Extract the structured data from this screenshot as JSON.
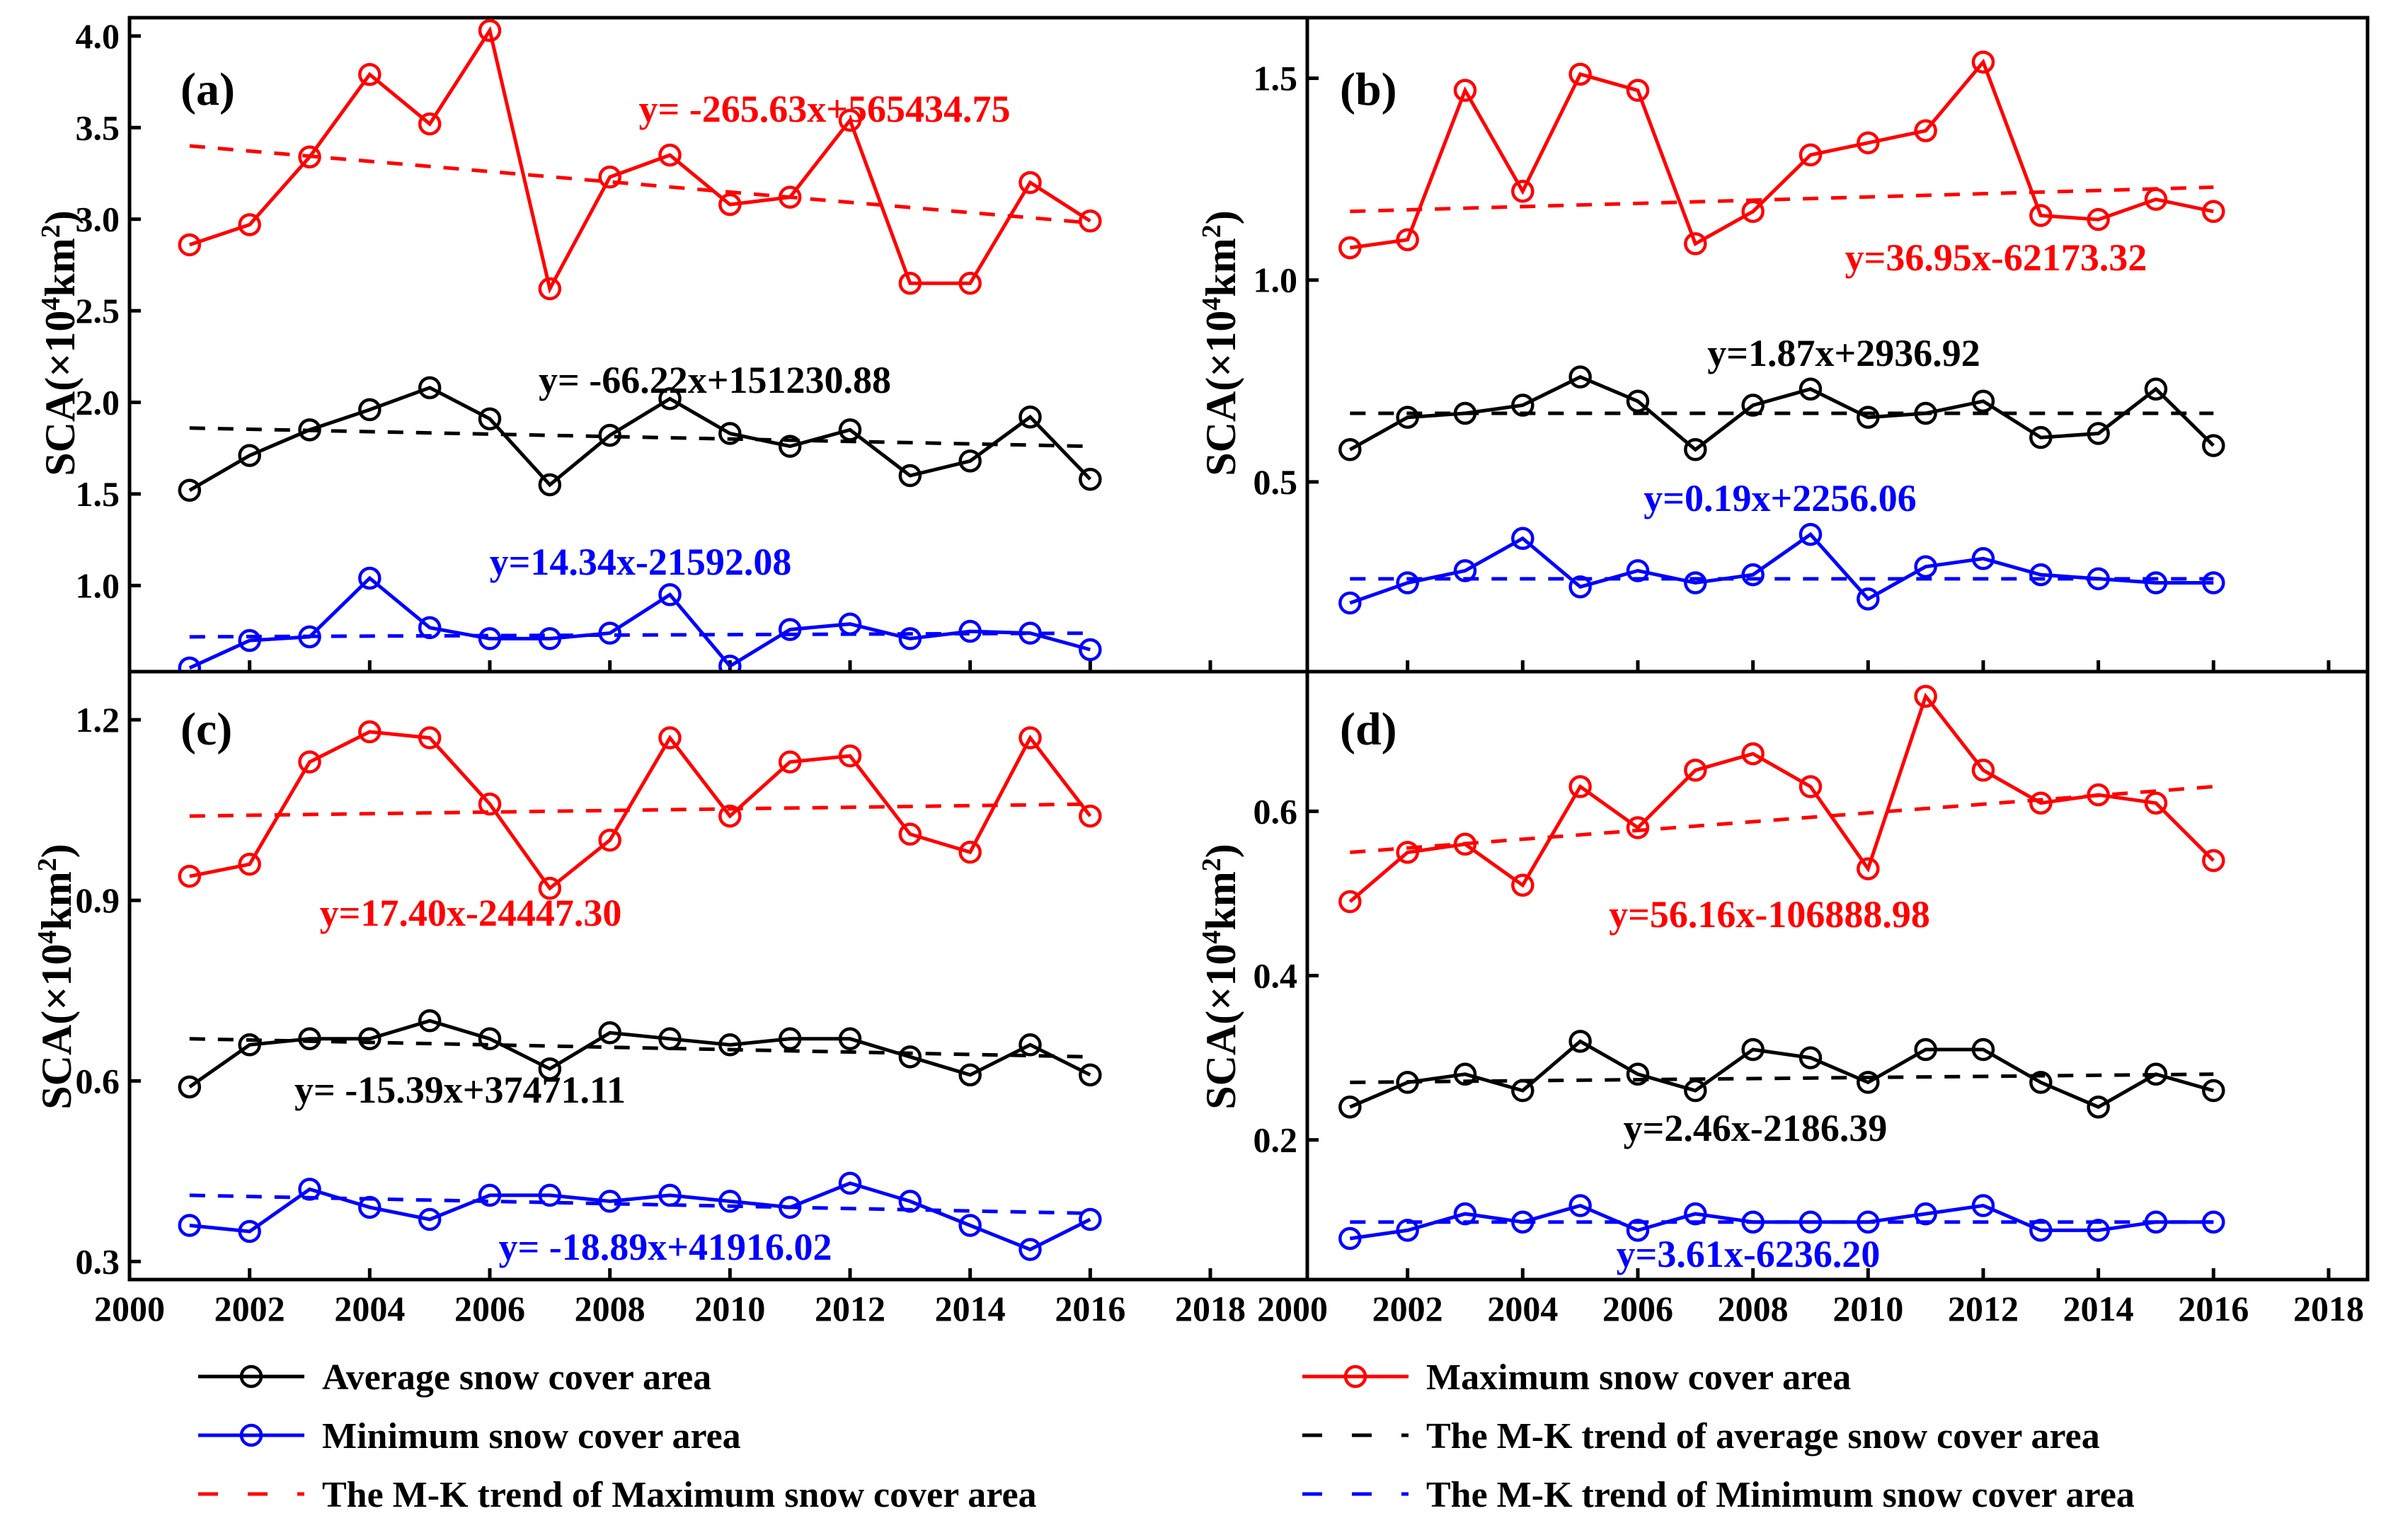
{
  "chart_data": [
    {
      "panel": "(a)",
      "type": "line",
      "ylabel_base": "SCA(×10",
      "ylabel_exp": "4",
      "ylabel_unit": "km",
      "ylabel_sq": "2",
      "ylabel_close": ")",
      "xlim": [
        2000,
        2018
      ],
      "ylim": [
        0.53,
        4.1
      ],
      "yticks": [
        "1.0",
        "1.5",
        "2.0",
        "2.5",
        "3.0",
        "3.5",
        "4.0"
      ],
      "ytick_values": [
        1.0,
        1.5,
        2.0,
        2.5,
        3.0,
        3.5,
        4.0
      ],
      "x": [
        2001,
        2002,
        2003,
        2004,
        2005,
        2006,
        2007,
        2008,
        2009,
        2010,
        2011,
        2012,
        2013,
        2014,
        2015,
        2016
      ],
      "series": [
        {
          "name": "Maximum snow cover area",
          "color": "#ff0000",
          "values": [
            2.86,
            2.97,
            3.34,
            3.79,
            3.52,
            4.03,
            2.62,
            3.23,
            3.35,
            3.08,
            3.12,
            3.54,
            2.65,
            2.65,
            3.2,
            2.99
          ],
          "trend": [
            3.4,
            2.98
          ]
        },
        {
          "name": "Average snow cover area",
          "color": "#000000",
          "values": [
            1.52,
            1.71,
            1.85,
            1.96,
            2.08,
            1.91,
            1.55,
            1.82,
            2.02,
            1.83,
            1.76,
            1.85,
            1.6,
            1.68,
            1.92,
            1.58
          ],
          "trend": [
            1.86,
            1.76
          ]
        },
        {
          "name": "Minimum snow cover area",
          "color": "#0000ff",
          "values": [
            0.55,
            0.7,
            0.72,
            1.04,
            0.77,
            0.71,
            0.71,
            0.74,
            0.95,
            0.56,
            0.76,
            0.79,
            0.71,
            0.75,
            0.74,
            0.65
          ],
          "trend": [
            0.72,
            0.74
          ]
        }
      ],
      "equations": [
        {
          "text": "y= -265.63x+565434.75",
          "color": "#ff0000"
        },
        {
          "text": "y= -66.22x+151230.88",
          "color": "#000000"
        },
        {
          "text": "y=14.34x-21592.08",
          "color": "#0000ff"
        }
      ]
    },
    {
      "panel": "(b)",
      "type": "line",
      "xlim": [
        2000,
        2018
      ],
      "ylim": [
        0.03,
        1.65
      ],
      "yticks": [
        "0.5",
        "1.0",
        "1.5"
      ],
      "ytick_values": [
        0.5,
        1.0,
        1.5
      ],
      "x": [
        2001,
        2002,
        2003,
        2004,
        2005,
        2006,
        2007,
        2008,
        2009,
        2010,
        2011,
        2012,
        2013,
        2014,
        2015,
        2016
      ],
      "series": [
        {
          "name": "Maximum snow cover area",
          "color": "#ff0000",
          "values": [
            1.08,
            1.1,
            1.47,
            1.22,
            1.51,
            1.47,
            1.09,
            1.17,
            1.31,
            1.34,
            1.37,
            1.54,
            1.16,
            1.15,
            1.2,
            1.17
          ],
          "trend": [
            1.17,
            1.23
          ]
        },
        {
          "name": "Average snow cover area",
          "color": "#000000",
          "values": [
            0.58,
            0.66,
            0.67,
            0.69,
            0.76,
            0.7,
            0.58,
            0.69,
            0.73,
            0.66,
            0.67,
            0.7,
            0.61,
            0.62,
            0.73,
            0.59
          ],
          "trend": [
            0.67,
            0.67
          ]
        },
        {
          "name": "Minimum snow cover area",
          "color": "#0000ff",
          "values": [
            0.2,
            0.25,
            0.28,
            0.36,
            0.24,
            0.28,
            0.25,
            0.27,
            0.37,
            0.21,
            0.29,
            0.31,
            0.27,
            0.26,
            0.25,
            0.25
          ],
          "trend": [
            0.26,
            0.26
          ]
        }
      ],
      "equations": [
        {
          "text": "y=36.95x-62173.32",
          "color": "#ff0000"
        },
        {
          "text": "y=1.87x+2936.92",
          "color": "#000000"
        },
        {
          "text": "y=0.19x+2256.06",
          "color": "#0000ff"
        }
      ]
    },
    {
      "panel": "(c)",
      "type": "line",
      "xlim": [
        2000,
        2018
      ],
      "ylim": [
        0.27,
        1.28
      ],
      "yticks": [
        "0.3",
        "0.6",
        "0.9",
        "1.2"
      ],
      "ytick_values": [
        0.3,
        0.6,
        0.9,
        1.2
      ],
      "x": [
        2001,
        2002,
        2003,
        2004,
        2005,
        2006,
        2007,
        2008,
        2009,
        2010,
        2011,
        2012,
        2013,
        2014,
        2015,
        2016
      ],
      "series": [
        {
          "name": "Maximum snow cover area",
          "color": "#ff0000",
          "values": [
            0.94,
            0.96,
            1.13,
            1.18,
            1.17,
            1.06,
            0.92,
            1.0,
            1.17,
            1.04,
            1.13,
            1.14,
            1.01,
            0.98,
            1.17,
            1.04
          ],
          "trend": [
            1.04,
            1.06
          ]
        },
        {
          "name": "Average snow cover area",
          "color": "#000000",
          "values": [
            0.59,
            0.66,
            0.67,
            0.67,
            0.7,
            0.67,
            0.62,
            0.68,
            0.67,
            0.66,
            0.67,
            0.67,
            0.64,
            0.61,
            0.66,
            0.61
          ],
          "trend": [
            0.67,
            0.64
          ]
        },
        {
          "name": "Minimum snow cover area",
          "color": "#0000ff",
          "values": [
            0.36,
            0.35,
            0.42,
            0.39,
            0.37,
            0.41,
            0.41,
            0.4,
            0.41,
            0.4,
            0.39,
            0.43,
            0.4,
            0.36,
            0.32,
            0.37
          ],
          "trend": [
            0.41,
            0.38
          ]
        }
      ],
      "equations": [
        {
          "text": "y=17.40x-24447.30",
          "color": "#ff0000"
        },
        {
          "text": "y= -15.39x+37471.11",
          "color": "#000000"
        },
        {
          "text": "y= -18.89x+41916.02",
          "color": "#0000ff"
        }
      ]
    },
    {
      "panel": "(d)",
      "type": "line",
      "xlim": [
        2000,
        2018
      ],
      "ylim": [
        0.03,
        0.77
      ],
      "yticks": [
        "0.2",
        "0.4",
        "0.6"
      ],
      "ytick_values": [
        0.2,
        0.4,
        0.6
      ],
      "x": [
        2001,
        2002,
        2003,
        2004,
        2005,
        2006,
        2007,
        2008,
        2009,
        2010,
        2011,
        2012,
        2013,
        2014,
        2015,
        2016
      ],
      "series": [
        {
          "name": "Maximum snow cover area",
          "color": "#ff0000",
          "values": [
            0.49,
            0.55,
            0.56,
            0.51,
            0.63,
            0.58,
            0.65,
            0.67,
            0.63,
            0.53,
            0.74,
            0.65,
            0.61,
            0.62,
            0.61,
            0.54
          ],
          "trend": [
            0.55,
            0.63
          ]
        },
        {
          "name": "Average snow cover area",
          "color": "#000000",
          "values": [
            0.24,
            0.27,
            0.28,
            0.26,
            0.32,
            0.28,
            0.26,
            0.31,
            0.3,
            0.27,
            0.31,
            0.31,
            0.27,
            0.24,
            0.28,
            0.26
          ],
          "trend": [
            0.27,
            0.28
          ]
        },
        {
          "name": "Minimum snow cover area",
          "color": "#0000ff",
          "values": [
            0.08,
            0.09,
            0.11,
            0.1,
            0.12,
            0.09,
            0.11,
            0.1,
            0.1,
            0.1,
            0.11,
            0.12,
            0.09,
            0.09,
            0.1,
            0.1
          ],
          "trend": [
            0.1,
            0.1
          ]
        }
      ],
      "equations": [
        {
          "text": "y=56.16x-106888.98",
          "color": "#ff0000"
        },
        {
          "text": "y=2.46x-2186.39",
          "color": "#000000"
        },
        {
          "text": "y=3.61x-6236.20",
          "color": "#0000ff"
        }
      ]
    }
  ],
  "xticks": [
    "2000",
    "2002",
    "2004",
    "2006",
    "2008",
    "2010",
    "2012",
    "2014",
    "2016",
    "2018"
  ],
  "legend": [
    {
      "label": "Average snow cover area",
      "color": "#000000",
      "style": "solid-marker"
    },
    {
      "label": "Maximum snow cover area",
      "color": "#ff0000",
      "style": "solid-marker"
    },
    {
      "label": "Minimum snow cover area",
      "color": "#0000ff",
      "style": "solid-marker"
    },
    {
      "label": "The M-K trend of average snow cover area",
      "color": "#000000",
      "style": "dashed"
    },
    {
      "label": "The M-K trend of Maximum snow cover area",
      "color": "#ff0000",
      "style": "dashed"
    },
    {
      "label": "The M-K trend of Minimum snow cover area",
      "color": "#0000ff",
      "style": "dashed"
    }
  ]
}
